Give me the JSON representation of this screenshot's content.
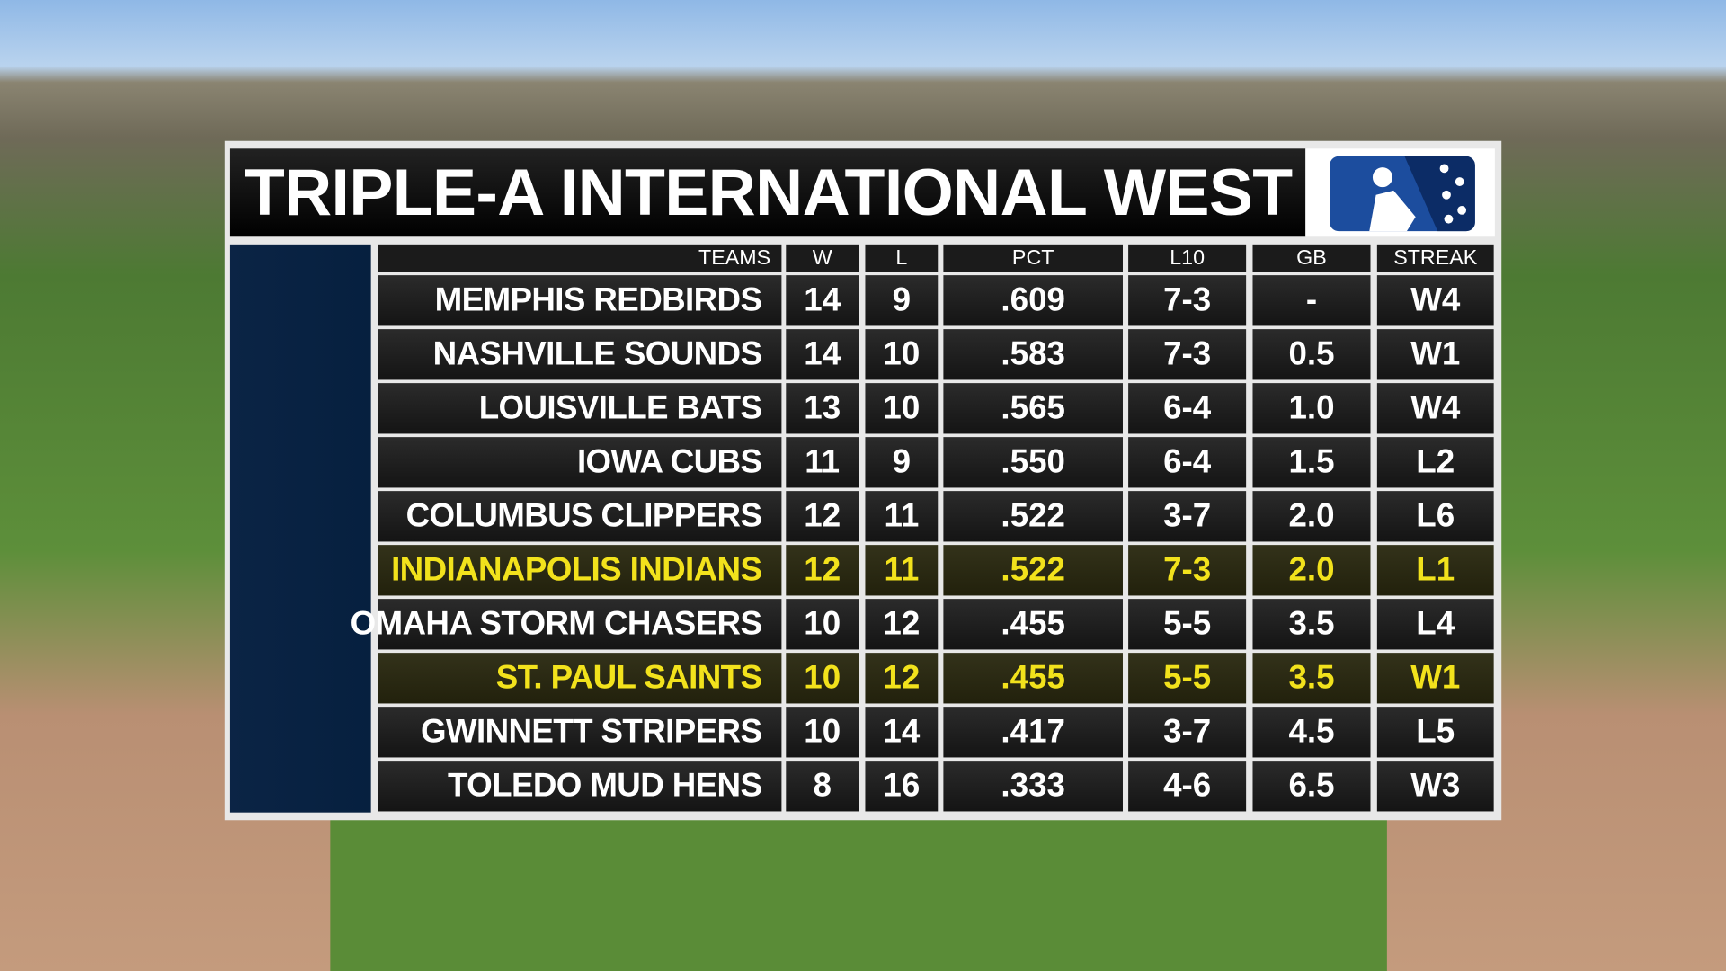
{
  "header": {
    "title": "TRIPLE-A INTERNATIONAL WEST"
  },
  "table": {
    "columns": [
      "TEAMS",
      "W",
      "L",
      "PCT",
      "L10",
      "GB",
      "STREAK"
    ],
    "rows": [
      {
        "cells": [
          "MEMPHIS REDBIRDS",
          "14",
          "9",
          ".609",
          "7-3",
          "-",
          "W4"
        ],
        "highlight": false
      },
      {
        "cells": [
          "NASHVILLE SOUNDS",
          "14",
          "10",
          ".583",
          "7-3",
          "0.5",
          "W1"
        ],
        "highlight": false
      },
      {
        "cells": [
          "LOUISVILLE BATS",
          "13",
          "10",
          ".565",
          "6-4",
          "1.0",
          "W4"
        ],
        "highlight": false
      },
      {
        "cells": [
          "IOWA CUBS",
          "11",
          "9",
          ".550",
          "6-4",
          "1.5",
          "L2"
        ],
        "highlight": false
      },
      {
        "cells": [
          "COLUMBUS CLIPPERS",
          "12",
          "11",
          ".522",
          "3-7",
          "2.0",
          "L6"
        ],
        "highlight": false
      },
      {
        "cells": [
          "INDIANAPOLIS INDIANS",
          "12",
          "11",
          ".522",
          "7-3",
          "2.0",
          "L1"
        ],
        "highlight": true
      },
      {
        "cells": [
          "OMAHA STORM CHASERS",
          "10",
          "12",
          ".455",
          "5-5",
          "3.5",
          "L4"
        ],
        "highlight": false
      },
      {
        "cells": [
          "ST. PAUL SAINTS",
          "10",
          "12",
          ".455",
          "5-5",
          "3.5",
          "W1"
        ],
        "highlight": true
      },
      {
        "cells": [
          "GWINNETT STRIPERS",
          "10",
          "14",
          ".417",
          "3-7",
          "4.5",
          "L5"
        ],
        "highlight": false
      },
      {
        "cells": [
          "TOLEDO MUD HENS",
          "8",
          "16",
          ".333",
          "4-6",
          "6.5",
          "W3"
        ],
        "highlight": false
      }
    ]
  }
}
